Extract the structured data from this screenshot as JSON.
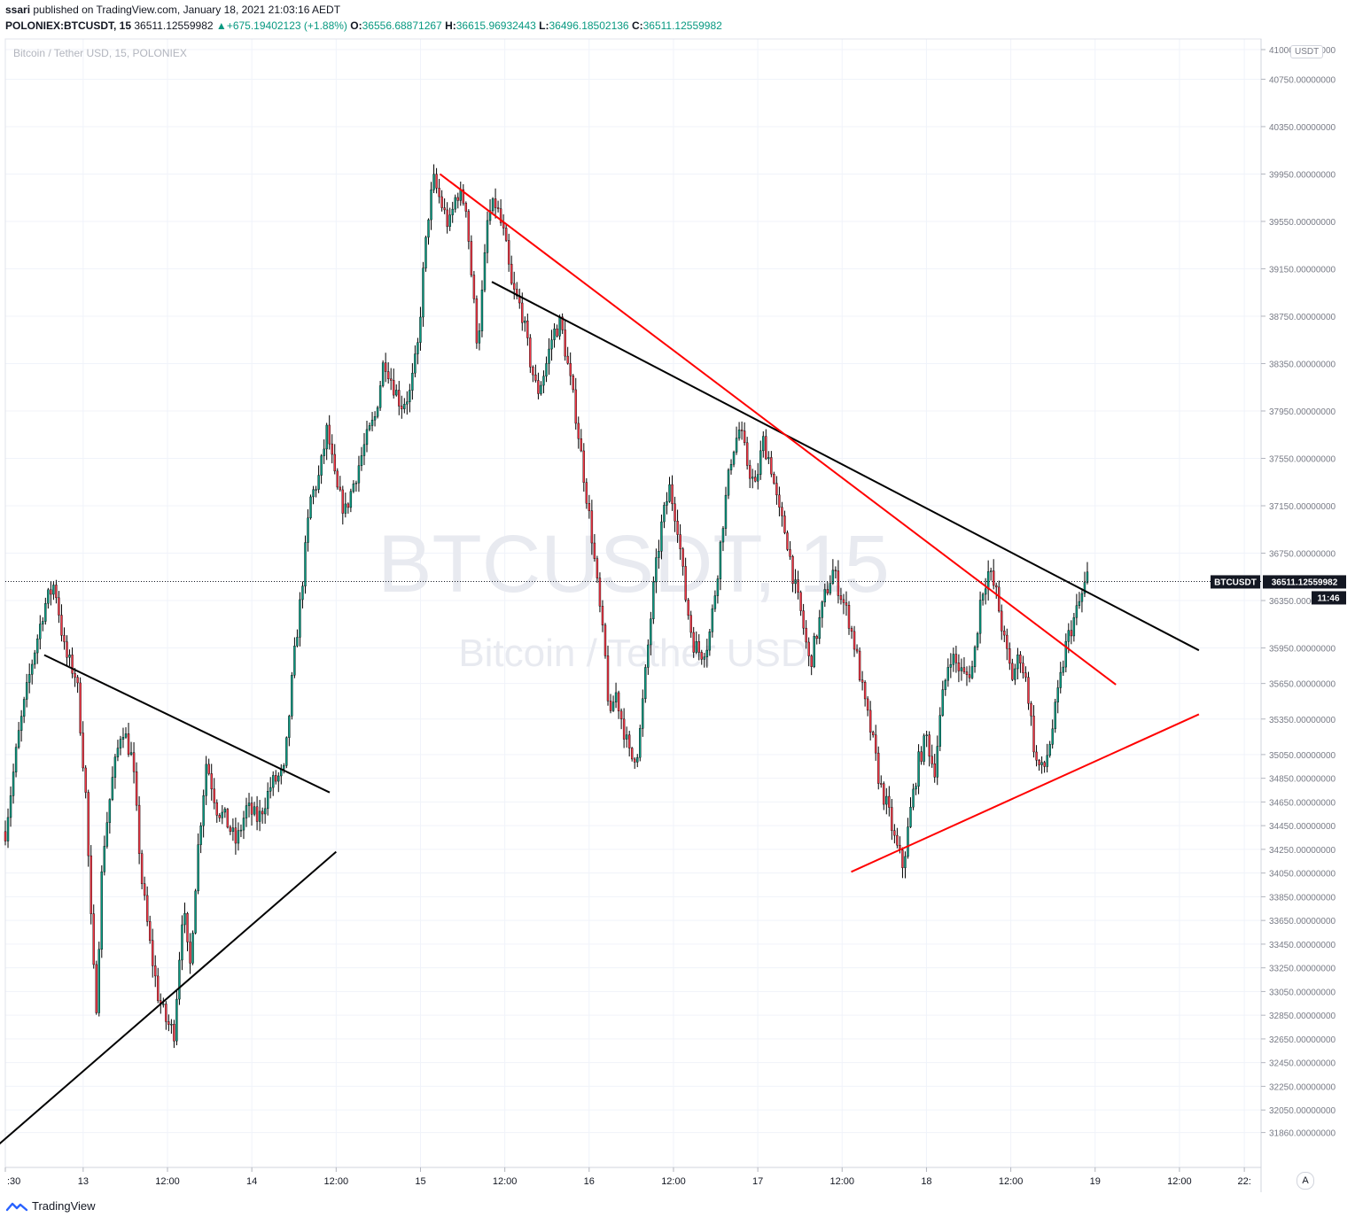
{
  "header": {
    "author": "ssari",
    "published_text": "published on TradingView.com, January 18, 2021 21:03:16 AEDT",
    "symbol": "POLONIEX:BTCUSDT, 15",
    "last": "36511.12559982",
    "change": "+675.19402123 (+1.88%)",
    "open_label": "O:",
    "open": "36556.68871267",
    "high_label": "H:",
    "high": "36615.96932443",
    "low_label": "L:",
    "low": "36496.18502136",
    "close_label": "C:",
    "close": "36511.12559982"
  },
  "watermark": {
    "line1": "BTCUSDT, 15",
    "line2": "Bitcoin / Tether USD"
  },
  "chart_title": "Bitcoin / Tether USD, 15, POLONIEX",
  "price_axis": {
    "unit": "USDT"
  },
  "price_tag": {
    "symbol": "BTCUSDT",
    "value": "36511.12559982",
    "countdown": "11:46"
  },
  "brand": {
    "name": "TradingView",
    "axis_button": "A"
  },
  "colors": {
    "up": "#089981",
    "down": "#f23645",
    "trend_black": "#000000",
    "trend_red": "#ff0000",
    "grid": "#f0f3fa"
  },
  "chart_data": {
    "type": "candlestick",
    "title": "Bitcoin / Tether USD, 15, POLONIEX",
    "ylim": [
      31700,
      41000
    ],
    "y_ticks": [
      "41000.00000000",
      "40750.00000000",
      "40350.00000000",
      "39950.00000000",
      "39550.00000000",
      "39150.00000000",
      "38750.00000000",
      "38350.00000000",
      "37950.00000000",
      "37550.00000000",
      "37150.00000000",
      "36750.00000000",
      "36350.00000000",
      "35950.00000000",
      "35650.00000000",
      "35350.00000000",
      "35050.00000000",
      "34850.00000000",
      "34650.00000000",
      "34450.00000000",
      "34250.00000000",
      "34050.00000000",
      "33850.00000000",
      "33650.00000000",
      "33450.00000000",
      "33250.00000000",
      "33050.00000000",
      "32850.00000000",
      "32650.00000000",
      "32450.00000000",
      "32250.00000000",
      "32050.00000000",
      "31860.00000000"
    ],
    "x_ticks": [
      {
        "label": ":30",
        "t": 0
      },
      {
        "label": "13",
        "t": 0.06
      },
      {
        "label": "12:00",
        "t": 0.125
      },
      {
        "label": "14",
        "t": 0.19
      },
      {
        "label": "12:00",
        "t": 0.255
      },
      {
        "label": "15",
        "t": 0.32
      },
      {
        "label": "12:00",
        "t": 0.385
      },
      {
        "label": "16",
        "t": 0.45
      },
      {
        "label": "12:00",
        "t": 0.515
      },
      {
        "label": "17",
        "t": 0.58
      },
      {
        "label": "12:00",
        "t": 0.645
      },
      {
        "label": "18",
        "t": 0.71
      },
      {
        "label": "12:00",
        "t": 0.775
      },
      {
        "label": "19",
        "t": 0.84
      },
      {
        "label": "12:00",
        "t": 0.905
      },
      {
        "label": "22:",
        "t": 0.955
      }
    ],
    "path": [
      [
        0.0,
        34400
      ],
      [
        0.01,
        35200
      ],
      [
        0.02,
        35800
      ],
      [
        0.03,
        36300
      ],
      [
        0.038,
        36500
      ],
      [
        0.046,
        35900
      ],
      [
        0.055,
        35700
      ],
      [
        0.062,
        34700
      ],
      [
        0.067,
        33400
      ],
      [
        0.07,
        32900
      ],
      [
        0.075,
        34200
      ],
      [
        0.082,
        34800
      ],
      [
        0.09,
        35300
      ],
      [
        0.098,
        35000
      ],
      [
        0.105,
        34000
      ],
      [
        0.112,
        33400
      ],
      [
        0.118,
        33000
      ],
      [
        0.124,
        32800
      ],
      [
        0.13,
        32700
      ],
      [
        0.137,
        33800
      ],
      [
        0.142,
        33200
      ],
      [
        0.148,
        34200
      ],
      [
        0.155,
        35000
      ],
      [
        0.163,
        34600
      ],
      [
        0.17,
        34500
      ],
      [
        0.178,
        34300
      ],
      [
        0.186,
        34600
      ],
      [
        0.195,
        34500
      ],
      [
        0.205,
        34800
      ],
      [
        0.215,
        34900
      ],
      [
        0.222,
        35800
      ],
      [
        0.228,
        36400
      ],
      [
        0.235,
        37200
      ],
      [
        0.242,
        37400
      ],
      [
        0.248,
        37800
      ],
      [
        0.255,
        37300
      ],
      [
        0.262,
        37100
      ],
      [
        0.27,
        37400
      ],
      [
        0.278,
        37700
      ],
      [
        0.285,
        37900
      ],
      [
        0.292,
        38400
      ],
      [
        0.298,
        38200
      ],
      [
        0.305,
        38000
      ],
      [
        0.312,
        38100
      ],
      [
        0.318,
        38500
      ],
      [
        0.322,
        39100
      ],
      [
        0.326,
        39600
      ],
      [
        0.33,
        39900
      ],
      [
        0.336,
        39700
      ],
      [
        0.342,
        39500
      ],
      [
        0.348,
        39800
      ],
      [
        0.355,
        39700
      ],
      [
        0.36,
        39000
      ],
      [
        0.364,
        38500
      ],
      [
        0.368,
        39000
      ],
      [
        0.372,
        39600
      ],
      [
        0.378,
        39700
      ],
      [
        0.385,
        39400
      ],
      [
        0.39,
        39000
      ],
      [
        0.398,
        38800
      ],
      [
        0.404,
        38400
      ],
      [
        0.41,
        38100
      ],
      [
        0.416,
        38300
      ],
      [
        0.422,
        38600
      ],
      [
        0.428,
        38700
      ],
      [
        0.434,
        38300
      ],
      [
        0.44,
        37900
      ],
      [
        0.446,
        37400
      ],
      [
        0.452,
        36900
      ],
      [
        0.458,
        36300
      ],
      [
        0.463,
        35800
      ],
      [
        0.466,
        35300
      ],
      [
        0.47,
        35600
      ],
      [
        0.476,
        35300
      ],
      [
        0.482,
        35000
      ],
      [
        0.488,
        35100
      ],
      [
        0.494,
        35800
      ],
      [
        0.5,
        36500
      ],
      [
        0.506,
        37000
      ],
      [
        0.512,
        37300
      ],
      [
        0.518,
        37000
      ],
      [
        0.524,
        36400
      ],
      [
        0.53,
        36000
      ],
      [
        0.536,
        35900
      ],
      [
        0.542,
        36000
      ],
      [
        0.548,
        36500
      ],
      [
        0.554,
        37100
      ],
      [
        0.56,
        37600
      ],
      [
        0.566,
        37800
      ],
      [
        0.572,
        37500
      ],
      [
        0.578,
        37300
      ],
      [
        0.584,
        37700
      ],
      [
        0.59,
        37500
      ],
      [
        0.596,
        37100
      ],
      [
        0.602,
        36900
      ],
      [
        0.608,
        36500
      ],
      [
        0.614,
        36200
      ],
      [
        0.62,
        35800
      ],
      [
        0.626,
        36100
      ],
      [
        0.632,
        36400
      ],
      [
        0.638,
        36600
      ],
      [
        0.644,
        36400
      ],
      [
        0.65,
        36200
      ],
      [
        0.656,
        35900
      ],
      [
        0.662,
        35500
      ],
      [
        0.668,
        35200
      ],
      [
        0.674,
        34800
      ],
      [
        0.68,
        34600
      ],
      [
        0.686,
        34300
      ],
      [
        0.692,
        34100
      ],
      [
        0.698,
        34600
      ],
      [
        0.704,
        35000
      ],
      [
        0.71,
        35200
      ],
      [
        0.716,
        34900
      ],
      [
        0.722,
        35500
      ],
      [
        0.728,
        35900
      ],
      [
        0.734,
        35800
      ],
      [
        0.74,
        35700
      ],
      [
        0.746,
        35800
      ],
      [
        0.752,
        36400
      ],
      [
        0.758,
        36600
      ],
      [
        0.764,
        36400
      ],
      [
        0.77,
        36000
      ],
      [
        0.776,
        35700
      ],
      [
        0.782,
        35900
      ],
      [
        0.788,
        35600
      ],
      [
        0.794,
        35000
      ],
      [
        0.8,
        34900
      ],
      [
        0.806,
        35200
      ],
      [
        0.812,
        35600
      ],
      [
        0.818,
        36000
      ],
      [
        0.824,
        36200
      ],
      [
        0.83,
        36400
      ],
      [
        0.834,
        36550
      ]
    ],
    "trendlines": [
      {
        "color": "black",
        "from": [
          0.03,
          35890
        ],
        "to": [
          0.25,
          34730
        ]
      },
      {
        "color": "black",
        "from": [
          -0.005,
          31760
        ],
        "to": [
          0.255,
          34230
        ]
      },
      {
        "color": "black",
        "from": [
          0.375,
          39040
        ],
        "to": [
          0.92,
          35930
        ]
      },
      {
        "color": "red",
        "from": [
          0.335,
          39950
        ],
        "to": [
          0.856,
          35640
        ]
      },
      {
        "color": "red",
        "from": [
          0.652,
          34060
        ],
        "to": [
          0.92,
          35390
        ]
      }
    ]
  }
}
